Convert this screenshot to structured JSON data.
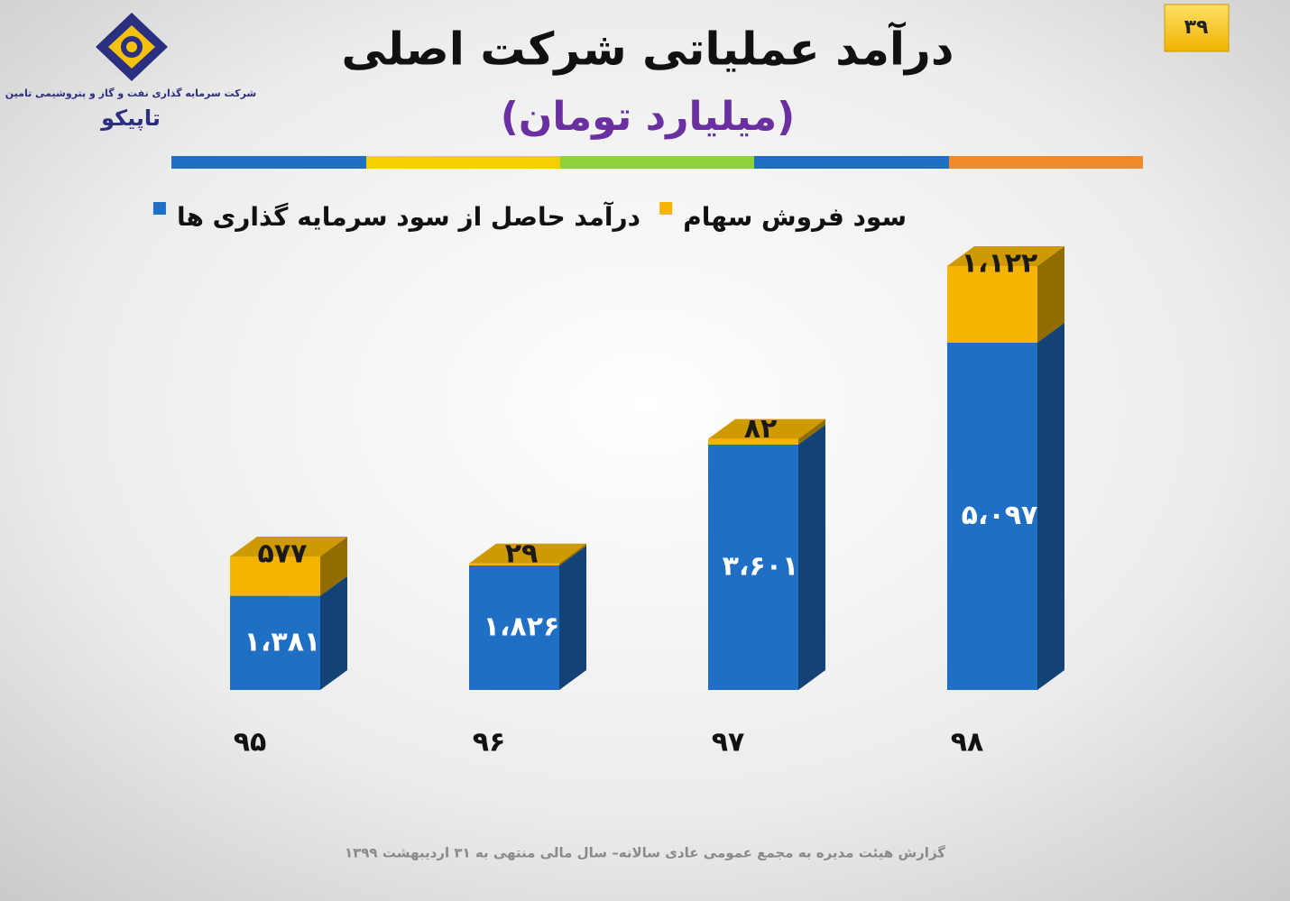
{
  "page": {
    "page_number": "۳۹",
    "logo_caption": "شرکت سرمایه گذاری نفت و گاز و پتروشیمی تامین",
    "logo_name": "تاپیکو",
    "footer": "گزارش هیئت مدیره به مجمع عمومی عادی سالانه– سال مالی منتهی به ۳۱ اردیبهشت ۱۳۹۹"
  },
  "chart_data": {
    "type": "bar",
    "stacked": true,
    "title": "درآمد عملیاتی شرکت اصلی",
    "subtitle": "(میلیارد تومان)",
    "categories": [
      "۹۵",
      "۹۶",
      "۹۷",
      "۹۸"
    ],
    "series": [
      {
        "name": "درآمد حاصل از سود سرمایه گذاری ها",
        "color": "#1f6fc4",
        "values": [
          1381,
          1826,
          3601,
          5097
        ],
        "value_labels": [
          "۱،۳۸۱",
          "۱،۸۲۶",
          "۳،۶۰۱",
          "۵،۰۹۷"
        ]
      },
      {
        "name": "سود فروش سهام",
        "color": "#f4b400",
        "values": [
          577,
          29,
          82,
          1122
        ],
        "value_labels": [
          "۵۷۷",
          "۲۹",
          "۸۲",
          "۱،۱۲۲"
        ]
      }
    ]
  }
}
